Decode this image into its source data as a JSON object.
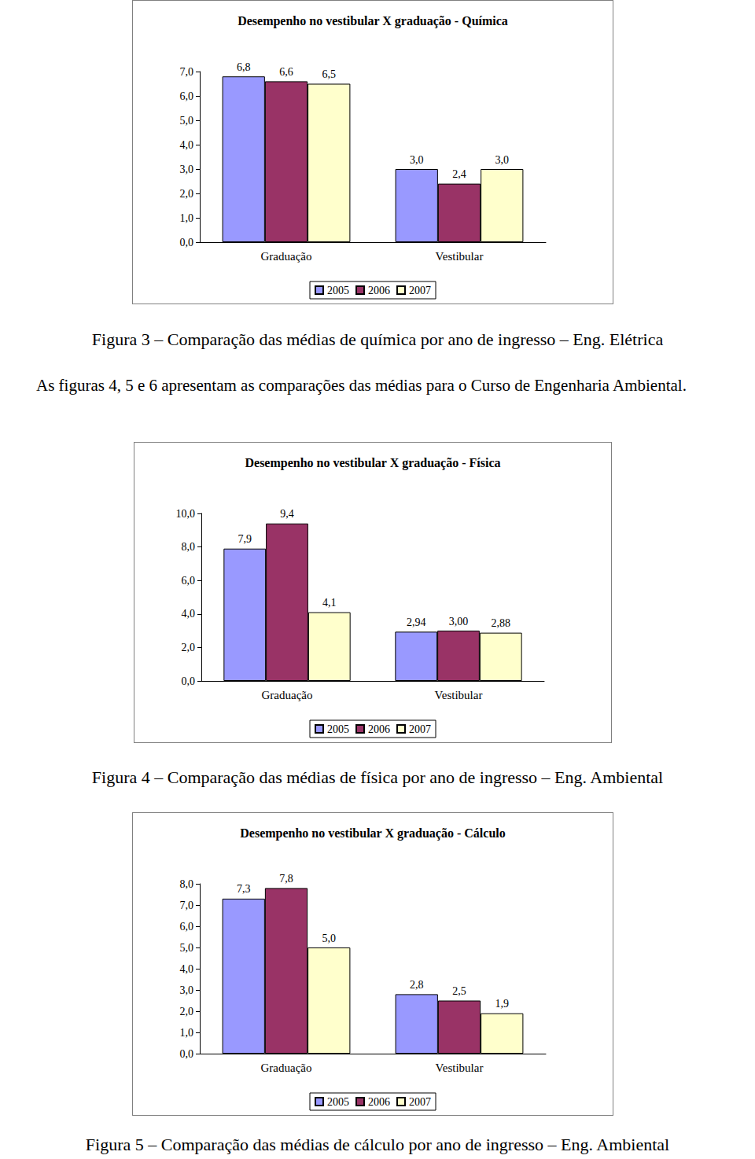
{
  "chart_data": [
    {
      "type": "bar",
      "title": "Desempenho no vestibular X graduação - Química",
      "categories": [
        "Graduação",
        "Vestibular"
      ],
      "series": [
        {
          "name": "2005",
          "color": "#9999ff",
          "values": [
            6.8,
            3.0
          ],
          "value_labels": [
            "6,8",
            "3,0"
          ]
        },
        {
          "name": "2006",
          "color": "#993366",
          "values": [
            6.6,
            2.4
          ],
          "value_labels": [
            "6,6",
            "2,4"
          ]
        },
        {
          "name": "2007",
          "color": "#ffffcc",
          "values": [
            6.5,
            3.0
          ],
          "value_labels": [
            "6,5",
            "3,0"
          ]
        }
      ],
      "ylim": [
        0,
        7
      ],
      "yticks": [
        {
          "value": 0,
          "label": "0,0"
        },
        {
          "value": 1,
          "label": "1,0"
        },
        {
          "value": 2,
          "label": "2,0"
        },
        {
          "value": 3,
          "label": "3,0"
        },
        {
          "value": 4,
          "label": "4,0"
        },
        {
          "value": 5,
          "label": "5,0"
        },
        {
          "value": 6,
          "label": "6,0"
        },
        {
          "value": 7,
          "label": "7,0"
        }
      ],
      "grid": false,
      "legend": "bottom",
      "data_labels": true
    },
    {
      "type": "bar",
      "title": "Desempenho no vestibular X graduação - Física",
      "categories": [
        "Graduação",
        "Vestibular"
      ],
      "series": [
        {
          "name": "2005",
          "color": "#9999ff",
          "values": [
            7.9,
            2.94
          ],
          "value_labels": [
            "7,9",
            "2,94"
          ]
        },
        {
          "name": "2006",
          "color": "#993366",
          "values": [
            9.4,
            3.0
          ],
          "value_labels": [
            "9,4",
            "3,00"
          ]
        },
        {
          "name": "2007",
          "color": "#ffffcc",
          "values": [
            4.1,
            2.88
          ],
          "value_labels": [
            "4,1",
            "2,88"
          ]
        }
      ],
      "ylim": [
        0,
        10
      ],
      "yticks": [
        {
          "value": 0,
          "label": "0,0"
        },
        {
          "value": 2,
          "label": "2,0"
        },
        {
          "value": 4,
          "label": "4,0"
        },
        {
          "value": 6,
          "label": "6,0"
        },
        {
          "value": 8,
          "label": "8,0"
        },
        {
          "value": 10,
          "label": "10,0"
        }
      ],
      "grid": false,
      "legend": "bottom",
      "data_labels": true
    },
    {
      "type": "bar",
      "title": "Desempenho no vestibular X graduação - Cálculo",
      "categories": [
        "Graduação",
        "Vestibular"
      ],
      "series": [
        {
          "name": "2005",
          "color": "#9999ff",
          "values": [
            7.3,
            2.8
          ],
          "value_labels": [
            "7,3",
            "2,8"
          ]
        },
        {
          "name": "2006",
          "color": "#993366",
          "values": [
            7.8,
            2.5
          ],
          "value_labels": [
            "7,8",
            "2,5"
          ]
        },
        {
          "name": "2007",
          "color": "#ffffcc",
          "values": [
            5.0,
            1.9
          ],
          "value_labels": [
            "5,0",
            "1,9"
          ]
        }
      ],
      "ylim": [
        0,
        8
      ],
      "yticks": [
        {
          "value": 0,
          "label": "0,0"
        },
        {
          "value": 1,
          "label": "1,0"
        },
        {
          "value": 2,
          "label": "2,0"
        },
        {
          "value": 3,
          "label": "3,0"
        },
        {
          "value": 4,
          "label": "4,0"
        },
        {
          "value": 5,
          "label": "5,0"
        },
        {
          "value": 6,
          "label": "6,0"
        },
        {
          "value": 7,
          "label": "7,0"
        },
        {
          "value": 8,
          "label": "8,0"
        }
      ],
      "grid": false,
      "legend": "bottom",
      "data_labels": true
    }
  ],
  "captions": [
    "Figura 3 – Comparação das médias de química por ano de ingresso – Eng. Elétrica",
    "Figura 4 – Comparação das médias de física por ano de ingresso – Eng. Ambiental",
    "Figura 5 – Comparação das médias de cálculo por ano de ingresso – Eng. Ambiental"
  ],
  "paragraph": "As figuras 4, 5 e 6 apresentam as comparações das médias para o Curso de Engenharia Ambiental."
}
